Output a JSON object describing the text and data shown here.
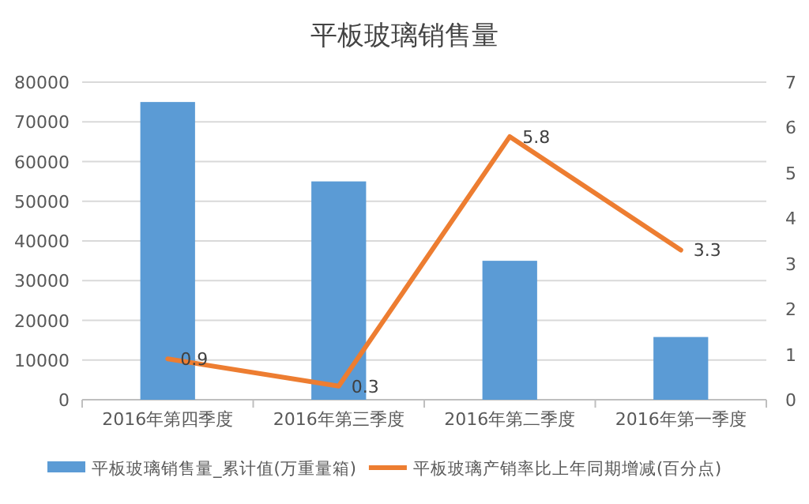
{
  "chart_data": {
    "type": "bar",
    "title": "平板玻璃销售量",
    "categories": [
      "2016年第四季度",
      "2016年第三季度",
      "2016年第二季度",
      "2016年第一季度"
    ],
    "series": [
      {
        "name": "平板玻璃销售量_累计值(万重量箱)",
        "color": "#5b9bd5",
        "values": [
          75000,
          55000,
          35000,
          15800
        ]
      },
      {
        "name": "平板玻璃产销率比上年同期增减(百分点)",
        "color": "#ed7d31",
        "type": "line",
        "axis": "y2",
        "values": [
          0.9,
          0.3,
          5.8,
          3.3
        ],
        "value_labels": [
          "0.9",
          "0.3",
          "5.8",
          "3.3"
        ]
      }
    ],
    "ylim": [
      0,
      80000
    ],
    "yticks": [
      0,
      10000,
      20000,
      30000,
      40000,
      50000,
      60000,
      70000,
      80000
    ],
    "y2lim": [
      0,
      7
    ],
    "y2ticks": [
      0,
      1,
      2,
      3,
      4,
      5,
      6,
      7
    ],
    "grid": "y",
    "legend": "bottom",
    "marker": "none"
  }
}
